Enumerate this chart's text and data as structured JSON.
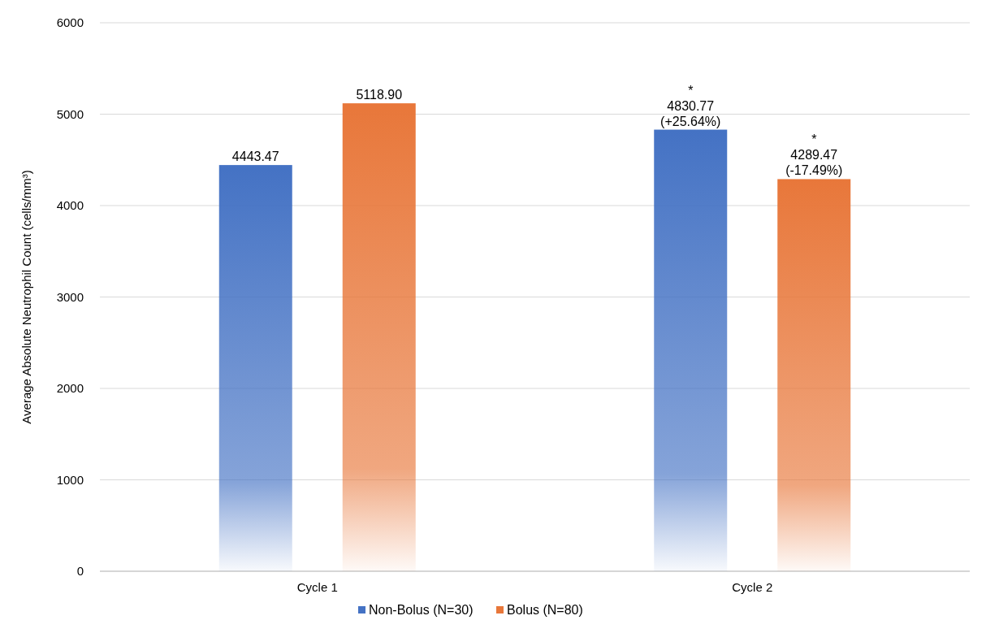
{
  "chart_data": {
    "type": "bar",
    "ylabel": "Average Absolute Neutrophil Count (cells/mm³)",
    "categories": [
      "Cycle 1",
      "Cycle 2"
    ],
    "series": [
      {
        "name": "Non-Bolus (N=30)",
        "color": "#4472c4",
        "values": [
          4443.47,
          4830.77
        ],
        "value_labels": [
          "4443.47",
          "*\n4830.77\n(+25.64%)"
        ]
      },
      {
        "name": "Bolus (N=80)",
        "color": "#e8773a",
        "values": [
          5118.9,
          4289.47
        ],
        "value_labels": [
          "5118.90",
          "*\n4289.47\n(-17.49%)"
        ]
      }
    ],
    "ylim": [
      0,
      6000
    ],
    "yticks": [
      0,
      1000,
      2000,
      3000,
      4000,
      5000,
      6000
    ],
    "grid": "y",
    "legend": "bottom"
  }
}
